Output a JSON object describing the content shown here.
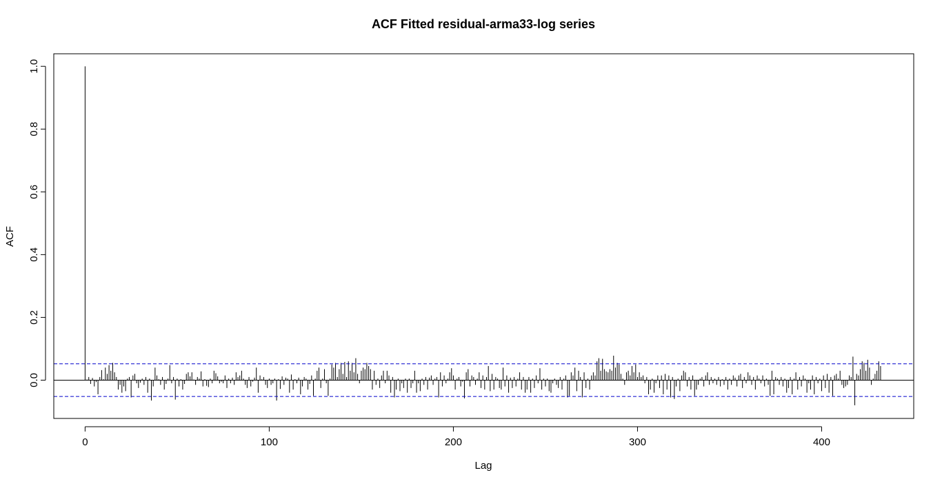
{
  "chart_data": {
    "type": "bar",
    "title": "ACF Fitted residual-arma33-log series",
    "xlabel": "Lag",
    "ylabel": "ACF",
    "xlim": [
      -17,
      450
    ],
    "ylim": [
      -0.122,
      1.04
    ],
    "x_ticks": [
      0,
      100,
      200,
      300,
      400
    ],
    "x_tick_labels": [
      "0",
      "100",
      "200",
      "300",
      "400"
    ],
    "y_ticks": [
      0.0,
      0.2,
      0.4,
      0.6,
      0.8,
      1.0
    ],
    "y_tick_labels": [
      "0.0",
      "0.2",
      "0.4",
      "0.6",
      "0.8",
      "1.0"
    ],
    "confidence_band": [
      -0.052,
      0.052
    ],
    "zero_line": 0,
    "grid": false,
    "colors": {
      "bars": "#000000",
      "confidence_band": "#0000cc",
      "frame": "#000000"
    },
    "lags": [
      0,
      1,
      2,
      3,
      4,
      5,
      6,
      7,
      8,
      9,
      10,
      11,
      12,
      13,
      14,
      15,
      16,
      17,
      18,
      19,
      20,
      21,
      22,
      23,
      24,
      25,
      26,
      27,
      28,
      29,
      30,
      31,
      32,
      33,
      34,
      35,
      36,
      37,
      38,
      39,
      40,
      41,
      42,
      43,
      44,
      45,
      46,
      47,
      48,
      49,
      50,
      51,
      52,
      53,
      54,
      55,
      56,
      57,
      58,
      59,
      60,
      61,
      62,
      63,
      64,
      65,
      66,
      67,
      68,
      69,
      70,
      71,
      72,
      73,
      74,
      75,
      76,
      77,
      78,
      79,
      80,
      81,
      82,
      83,
      84,
      85,
      86,
      87,
      88,
      89,
      90,
      91,
      92,
      93,
      94,
      95,
      96,
      97,
      98,
      99,
      100,
      101,
      102,
      103,
      104,
      105,
      106,
      107,
      108,
      109,
      110,
      111,
      112,
      113,
      114,
      115,
      116,
      117,
      118,
      119,
      120,
      121,
      122,
      123,
      124,
      125,
      126,
      127,
      128,
      129,
      130,
      131,
      132,
      133,
      134,
      135,
      136,
      137,
      138,
      139,
      140,
      141,
      142,
      143,
      144,
      145,
      146,
      147,
      148,
      149,
      150,
      151,
      152,
      153,
      154,
      155,
      156,
      157,
      158,
      159,
      160,
      161,
      162,
      163,
      164,
      165,
      166,
      167,
      168,
      169,
      170,
      171,
      172,
      173,
      174,
      175,
      176,
      177,
      178,
      179,
      180,
      181,
      182,
      183,
      184,
      185,
      186,
      187,
      188,
      189,
      190,
      191,
      192,
      193,
      194,
      195,
      196,
      197,
      198,
      199,
      200,
      201,
      202,
      203,
      204,
      205,
      206,
      207,
      208,
      209,
      210,
      211,
      212,
      213,
      214,
      215,
      216,
      217,
      218,
      219,
      220,
      221,
      222,
      223,
      224,
      225,
      226,
      227,
      228,
      229,
      230,
      231,
      232,
      233,
      234,
      235,
      236,
      237,
      238,
      239,
      240,
      241,
      242,
      243,
      244,
      245,
      246,
      247,
      248,
      249,
      250,
      251,
      252,
      253,
      254,
      255,
      256,
      257,
      258,
      259,
      260,
      261,
      262,
      263,
      264,
      265,
      266,
      267,
      268,
      269,
      270,
      271,
      272,
      273,
      274,
      275,
      276,
      277,
      278,
      279,
      280,
      281,
      282,
      283,
      284,
      285,
      286,
      287,
      288,
      289,
      290,
      291,
      292,
      293,
      294,
      295,
      296,
      297,
      298,
      299,
      300,
      301,
      302,
      303,
      304,
      305,
      306,
      307,
      308,
      309,
      310,
      311,
      312,
      313,
      314,
      315,
      316,
      317,
      318,
      319,
      320,
      321,
      322,
      323,
      324,
      325,
      326,
      327,
      328,
      329,
      330,
      331,
      332,
      333,
      334,
      335,
      336,
      337,
      338,
      339,
      340,
      341,
      342,
      343,
      344,
      345,
      346,
      347,
      348,
      349,
      350,
      351,
      352,
      353,
      354,
      355,
      356,
      357,
      358,
      359,
      360,
      361,
      362,
      363,
      364,
      365,
      366,
      367,
      368,
      369,
      370,
      371,
      372,
      373,
      374,
      375,
      376,
      377,
      378,
      379,
      380,
      381,
      382,
      383,
      384,
      385,
      386,
      387,
      388,
      389,
      390,
      391,
      392,
      393,
      394,
      395,
      396,
      397,
      398,
      399,
      400,
      401,
      402,
      403,
      404,
      405,
      406,
      407,
      408,
      409,
      410,
      411,
      412,
      413,
      414,
      415,
      416,
      417,
      418,
      419,
      420,
      421,
      422,
      423,
      424,
      425,
      426,
      427,
      428,
      429,
      430,
      431,
      432
    ],
    "acf": [
      1.0,
      0.002,
      0.01,
      -0.012,
      0.007,
      -0.02,
      -0.006,
      -0.045,
      0.01,
      0.032,
      0.003,
      0.04,
      0.02,
      0.048,
      0.03,
      0.055,
      0.025,
      0.01,
      -0.03,
      -0.015,
      -0.04,
      -0.02,
      -0.035,
      0.005,
      0.01,
      -0.055,
      0.015,
      0.02,
      -0.01,
      -0.025,
      -0.008,
      0.005,
      -0.015,
      0.01,
      -0.04,
      0.005,
      -0.065,
      -0.02,
      0.04,
      0.015,
      0.003,
      -0.015,
      0.01,
      -0.03,
      -0.012,
      0.005,
      0.048,
      -0.01,
      0.01,
      -0.062,
      0.005,
      -0.02,
      0.003,
      -0.03,
      -0.012,
      0.02,
      0.025,
      0.012,
      0.025,
      0.002,
      -0.015,
      0.01,
      0.005,
      0.028,
      -0.02,
      0.003,
      -0.018,
      -0.022,
      0.005,
      -0.01,
      0.03,
      0.022,
      0.012,
      -0.01,
      -0.005,
      -0.01,
      0.015,
      -0.025,
      0.005,
      -0.01,
      0.008,
      -0.015,
      0.025,
      0.01,
      0.015,
      0.03,
      0.005,
      -0.015,
      -0.025,
      0.01,
      -0.02,
      -0.005,
      0.008,
      0.04,
      -0.04,
      0.015,
      0.003,
      0.01,
      -0.015,
      -0.025,
      0.005,
      -0.015,
      -0.01,
      0.005,
      -0.065,
      0.003,
      -0.028,
      0.012,
      -0.015,
      0.008,
      0.005,
      -0.04,
      0.018,
      -0.03,
      0.003,
      -0.01,
      0.008,
      -0.045,
      -0.02,
      0.01,
      0.005,
      -0.03,
      -0.012,
      0.015,
      -0.05,
      0.005,
      0.03,
      0.04,
      -0.025,
      0.005,
      0.035,
      -0.01,
      -0.05,
      0.005,
      0.05,
      0.04,
      0.055,
      0.01,
      0.035,
      0.055,
      0.02,
      0.058,
      0.01,
      0.06,
      0.03,
      0.055,
      0.025,
      0.07,
      0.02,
      -0.01,
      0.03,
      0.04,
      0.035,
      0.055,
      0.045,
      0.035,
      -0.03,
      0.03,
      -0.015,
      0.005,
      -0.025,
      0.015,
      0.03,
      -0.01,
      0.03,
      0.015,
      -0.04,
      0.01,
      -0.055,
      -0.03,
      0.005,
      -0.035,
      -0.01,
      -0.025,
      0.005,
      -0.04,
      0.005,
      -0.025,
      -0.01,
      0.03,
      -0.04,
      -0.01,
      -0.035,
      0.005,
      -0.015,
      0.01,
      -0.03,
      0.008,
      0.015,
      -0.015,
      0.005,
      0.01,
      -0.055,
      0.025,
      -0.02,
      0.015,
      -0.01,
      0.005,
      0.025,
      0.038,
      0.015,
      -0.03,
      0.005,
      0.01,
      -0.02,
      -0.005,
      -0.058,
      0.025,
      0.035,
      -0.02,
      0.015,
      0.01,
      -0.015,
      0.005,
      0.025,
      -0.025,
      0.015,
      -0.03,
      0.01,
      0.045,
      -0.035,
      0.02,
      -0.03,
      0.01,
      0.005,
      -0.025,
      -0.03,
      0.04,
      -0.02,
      0.015,
      -0.04,
      0.008,
      -0.025,
      0.01,
      -0.02,
      0.005,
      0.025,
      -0.03,
      0.01,
      -0.04,
      -0.03,
      0.01,
      -0.04,
      0.005,
      -0.025,
      0.015,
      -0.01,
      0.038,
      -0.03,
      0.005,
      -0.02,
      0.005,
      -0.035,
      -0.04,
      -0.01,
      0.005,
      -0.015,
      -0.025,
      0.01,
      -0.03,
      0.005,
      0.015,
      -0.055,
      -0.05,
      0.025,
      0.015,
      0.04,
      -0.035,
      0.03,
      0.01,
      -0.055,
      0.025,
      -0.025,
      0.005,
      -0.03,
      0.015,
      0.025,
      0.015,
      0.06,
      0.07,
      0.03,
      0.068,
      0.035,
      0.028,
      0.025,
      0.035,
      0.03,
      0.078,
      0.04,
      0.055,
      0.05,
      0.02,
      0.005,
      -0.015,
      0.025,
      0.03,
      0.015,
      0.045,
      0.025,
      0.05,
      0.01,
      0.025,
      0.01,
      0.015,
      -0.01,
      0.01,
      -0.045,
      -0.03,
      0.005,
      -0.04,
      -0.01,
      0.015,
      -0.025,
      0.015,
      -0.045,
      0.02,
      -0.03,
      0.015,
      -0.055,
      0.01,
      -0.06,
      -0.02,
      0.005,
      -0.035,
      0.015,
      0.03,
      0.025,
      -0.02,
      0.01,
      -0.03,
      0.015,
      -0.05,
      -0.03,
      -0.015,
      0.005,
      0.01,
      -0.02,
      0.015,
      0.025,
      -0.015,
      0.01,
      -0.01,
      0.005,
      -0.015,
      0.01,
      -0.02,
      0.003,
      -0.015,
      0.01,
      -0.03,
      0.005,
      -0.015,
      0.015,
      0.008,
      -0.02,
      0.015,
      0.02,
      -0.025,
      0.01,
      -0.01,
      0.025,
      0.015,
      -0.015,
      0.01,
      -0.03,
      0.015,
      0.005,
      -0.01,
      0.015,
      -0.02,
      0.005,
      -0.015,
      -0.05,
      0.03,
      -0.045,
      0.01,
      0.005,
      -0.015,
      0.01,
      -0.02,
      0.005,
      -0.04,
      -0.025,
      0.01,
      -0.045,
      0.005,
      0.025,
      -0.03,
      0.01,
      -0.02,
      0.015,
      0.005,
      -0.04,
      -0.01,
      -0.03,
      0.015,
      -0.045,
      0.01,
      -0.01,
      0.005,
      -0.035,
      0.015,
      -0.025,
      0.02,
      -0.04,
      0.01,
      -0.05,
      0.015,
      0.02,
      0.005,
      0.03,
      -0.015,
      -0.025,
      -0.02,
      -0.015,
      0.015,
      0.01,
      0.075,
      -0.08,
      0.02,
      0.015,
      0.035,
      0.06,
      0.055,
      0.03,
      0.065,
      0.04,
      -0.015,
      0.005,
      0.02,
      0.03,
      0.06,
      0.045
    ]
  }
}
